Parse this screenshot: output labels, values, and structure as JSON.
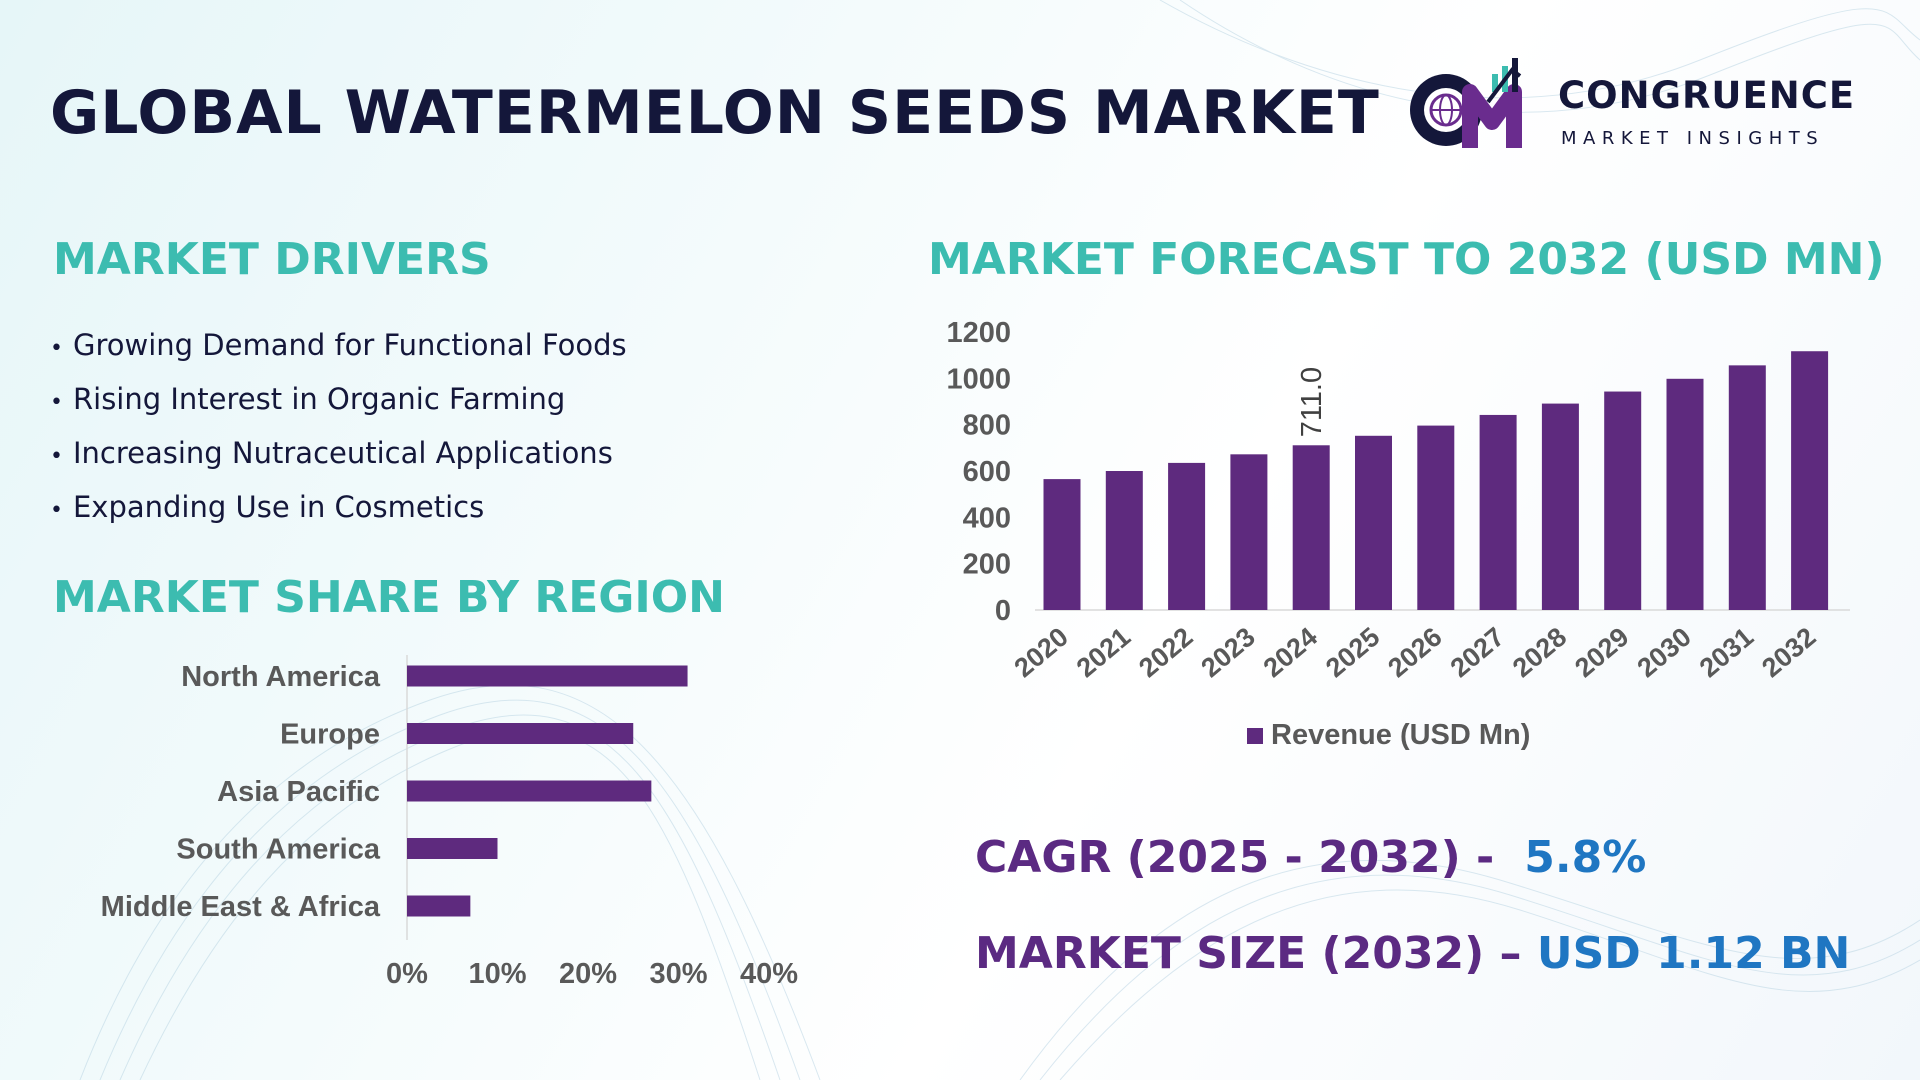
{
  "header": {
    "title": "GLOBAL WATERMELON SEEDS MARKET"
  },
  "logo": {
    "name": "CONGRUENCE",
    "tagline": "MARKET INSIGHTS",
    "mark_icon": "cm-globe-logo-icon",
    "colors": {
      "navy": "#14173a",
      "purple": "#6a2c8e",
      "teal": "#3cbcb0"
    }
  },
  "drivers": {
    "heading": "MARKET DRIVERS",
    "bullet": "•",
    "items": [
      "Growing Demand for Functional Foods",
      "Rising Interest in Organic Farming",
      "Increasing Nutraceutical Applications",
      "Expanding Use in Cosmetics"
    ]
  },
  "region": {
    "heading": "MARKET SHARE BY REGION"
  },
  "forecast": {
    "heading": "MARKET FORECAST TO 2032 (USD MN)"
  },
  "stats": {
    "cagr_label": "CAGR (2025 - 2032) -",
    "cagr_value": "5.8%",
    "size_label": "MARKET SIZE (2032) –",
    "size_value": "USD 1.12 BN"
  },
  "colors": {
    "bar": "#5e2a7e",
    "heading_teal": "#3cbcb0",
    "title_navy": "#14173a",
    "stat_purple": "#5b2a82",
    "stat_blue": "#1f76c2",
    "axis_gray": "#595959"
  },
  "chart_data": [
    {
      "type": "bar",
      "orientation": "horizontal",
      "categories": [
        "North America",
        "Europe",
        "Asia Pacific",
        "South America",
        "Middle East & Africa"
      ],
      "values": [
        31,
        25,
        27,
        10,
        7
      ],
      "xlim": [
        0,
        40
      ],
      "xticks": [
        "0%",
        "10%",
        "20%",
        "30%",
        "40%"
      ],
      "grid": false,
      "legend": "none"
    },
    {
      "type": "bar",
      "orientation": "vertical",
      "categories": [
        "2020",
        "2021",
        "2022",
        "2023",
        "2024",
        "2025",
        "2026",
        "2027",
        "2028",
        "2029",
        "2030",
        "2031",
        "2032"
      ],
      "series": [
        {
          "name": "Revenue (USD Mn)",
          "values": [
            565,
            600,
            635,
            672,
            711,
            752,
            796,
            842,
            891,
            943,
            998,
            1056,
            1117
          ]
        }
      ],
      "data_labels": [
        {
          "category": "2024",
          "text": "711.0"
        }
      ],
      "ylim": [
        0,
        1200
      ],
      "yticks": [
        "0",
        "200",
        "400",
        "600",
        "800",
        "1000",
        "1200"
      ],
      "grid": false,
      "legend": "bottom"
    }
  ]
}
